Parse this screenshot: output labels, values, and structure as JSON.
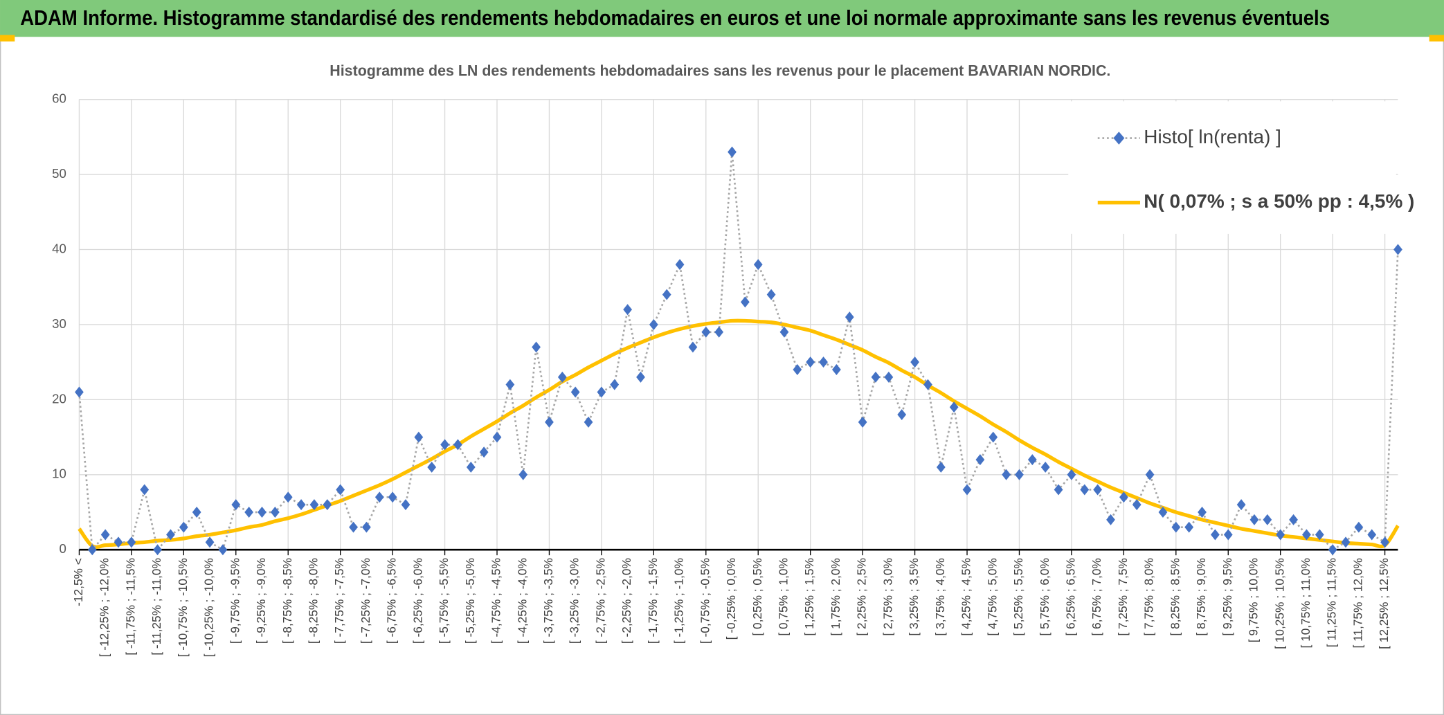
{
  "header": {
    "title": "ADAM Informe. Histogramme standardisé des rendements hebdomadaires en euros et une loi normale approximante sans les revenus éventuels"
  },
  "chart_data": {
    "type": "line",
    "title": "Histogramme des LN des rendements hebdomadaires sans les revenus pour le placement BAVARIAN NORDIC.",
    "categories": [
      "-12,5% <",
      null,
      "[ -12,25% ; -12,0%",
      null,
      "[ -11,75% ; -11,5%",
      null,
      "[ -11,25% ; -11,0%",
      null,
      "[ -10,75% ; -10,5%",
      null,
      "[ -10,25% ; -10,0%",
      null,
      "[ -9,75% ; -9,5%",
      null,
      "[ -9,25% ; -9,0%",
      null,
      "[ -8,75% ; -8,5%",
      null,
      "[ -8,25% ; -8,0%",
      null,
      "[ -7,75% ; -7,5%",
      null,
      "[ -7,25% ; -7,0%",
      null,
      "[ -6,75% ; -6,5%",
      null,
      "[ -6,25% ; -6,0%",
      null,
      "[ -5,75% ; -5,5%",
      null,
      "[ -5,25% ; -5,0%",
      null,
      "[ -4,75% ; -4,5%",
      null,
      "[ -4,25% ; -4,0%",
      null,
      "[ -3,75% ; -3,5%",
      null,
      "[ -3,25% ; -3,0%",
      null,
      "[ -2,75% ; -2,5%",
      null,
      "[ -2,25% ; -2,0%",
      null,
      "[ -1,75% ; -1,5%",
      null,
      "[ -1,25% ; -1,0%",
      null,
      "[ -0,75% ; -0,5%",
      null,
      "[ -0,25% ; 0,0%",
      null,
      "[ 0,25% ; 0,5%",
      null,
      "[ 0,75% ; 1,0%",
      null,
      "[ 1,25% ; 1,5%",
      null,
      "[ 1,75% ; 2,0%",
      null,
      "[ 2,25% ; 2,5%",
      null,
      "[ 2,75% ; 3,0%",
      null,
      "[ 3,25% ; 3,5%",
      null,
      "[ 3,75% ; 4,0%",
      null,
      "[ 4,25% ; 4,5%",
      null,
      "[ 4,75% ; 5,0%",
      null,
      "[ 5,25% ; 5,5%",
      null,
      "[ 5,75% ; 6,0%",
      null,
      "[ 6,25% ; 6,5%",
      null,
      "[ 6,75% ; 7,0%",
      null,
      "[ 7,25% ; 7,5%",
      null,
      "[ 7,75% ; 8,0%",
      null,
      "[ 8,25% ; 8,5%",
      null,
      "[ 8,75% ; 9,0%",
      null,
      "[ 9,25% ; 9,5%",
      null,
      "[ 9,75% ; 10,0%",
      null,
      "[ 10,25% ; 10,5%",
      null,
      "[ 10,75% ; 11,0%",
      null,
      "[ 11,25% ; 11,5%",
      null,
      "[ 11,75% ; 12,0%",
      null,
      "[ 12,25% ; 12,5%",
      null
    ],
    "series": [
      {
        "name": "Histo[ ln(renta) ]",
        "color": "#4472c4",
        "marker": "diamond",
        "line_style": "dotted",
        "line_color": "#a6a6a6",
        "values": [
          21,
          0,
          2,
          1,
          1,
          8,
          0,
          2,
          3,
          5,
          1,
          0,
          6,
          5,
          5,
          5,
          7,
          6,
          6,
          6,
          8,
          3,
          3,
          7,
          7,
          6,
          15,
          11,
          14,
          14,
          11,
          13,
          15,
          22,
          10,
          27,
          17,
          23,
          21,
          17,
          21,
          22,
          32,
          23,
          30,
          34,
          38,
          27,
          29,
          29,
          53,
          33,
          38,
          34,
          29,
          24,
          25,
          25,
          24,
          31,
          17,
          23,
          23,
          18,
          25,
          22,
          11,
          19,
          8,
          12,
          15,
          10,
          10,
          12,
          11,
          8,
          10,
          8,
          8,
          4,
          7,
          6,
          10,
          5,
          3,
          3,
          5,
          2,
          2,
          6,
          4,
          4,
          2,
          4,
          2,
          2,
          0,
          1,
          3,
          2,
          1,
          40
        ]
      },
      {
        "name": "N( 0,07% ; s a 50% pp : 4,5% )",
        "color": "#ffc000",
        "line_style": "solid",
        "values": [
          2.8,
          0.5,
          0.6,
          0.7,
          0.9,
          1.0,
          1.2,
          1.3,
          1.5,
          1.8,
          2.0,
          2.3,
          2.6,
          3.0,
          3.3,
          3.8,
          4.2,
          4.7,
          5.3,
          5.9,
          6.5,
          7.2,
          7.9,
          8.6,
          9.4,
          10.3,
          11.2,
          12.1,
          13.1,
          14.0,
          15.1,
          16.1,
          17.1,
          18.2,
          19.2,
          20.3,
          21.3,
          22.4,
          23.3,
          24.3,
          25.2,
          26.1,
          26.9,
          27.6,
          28.3,
          28.9,
          29.4,
          29.8,
          30.1,
          30.3,
          30.5,
          30.5,
          30.4,
          30.3,
          30.0,
          29.6,
          29.2,
          28.6,
          28.0,
          27.3,
          26.6,
          25.7,
          24.9,
          23.9,
          23.0,
          21.9,
          20.9,
          19.8,
          18.8,
          17.8,
          16.7,
          15.7,
          14.6,
          13.6,
          12.7,
          11.7,
          10.8,
          9.9,
          9.1,
          8.3,
          7.6,
          6.9,
          6.2,
          5.6,
          5.0,
          4.5,
          4.0,
          3.6,
          3.2,
          2.8,
          2.5,
          2.2,
          1.9,
          1.7,
          1.5,
          1.3,
          1.1,
          0.9,
          0.8,
          0.7,
          0.6,
          3.2
        ]
      }
    ],
    "ylim": [
      0,
      60
    ],
    "yticks": [
      0,
      10,
      20,
      30,
      40,
      50,
      60
    ],
    "grid": true,
    "legend": "top-right"
  }
}
